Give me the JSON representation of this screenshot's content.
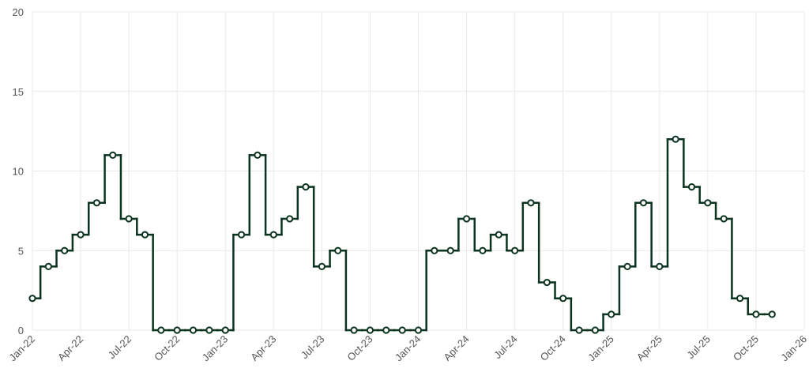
{
  "chart_data": {
    "type": "step",
    "x": [
      "2022-01",
      "2022-02",
      "2022-03",
      "2022-04",
      "2022-05",
      "2022-06",
      "2022-07",
      "2022-08",
      "2022-09",
      "2022-10",
      "2022-11",
      "2022-12",
      "2023-01",
      "2023-02",
      "2023-03",
      "2023-04",
      "2023-05",
      "2023-06",
      "2023-07",
      "2023-08",
      "2023-09",
      "2023-10",
      "2023-11",
      "2023-12",
      "2024-01",
      "2024-02",
      "2024-03",
      "2024-04",
      "2024-05",
      "2024-06",
      "2024-07",
      "2024-08",
      "2024-09",
      "2024-10",
      "2024-11",
      "2024-12",
      "2025-01",
      "2025-02",
      "2025-03",
      "2025-04",
      "2025-05",
      "2025-06",
      "2025-07",
      "2025-08",
      "2025-09",
      "2025-10",
      "2025-11"
    ],
    "values": [
      2,
      4,
      5,
      6,
      8,
      11,
      7,
      6,
      0,
      0,
      0,
      0,
      0,
      6,
      11,
      6,
      7,
      9,
      4,
      5,
      0,
      0,
      0,
      0,
      0,
      5,
      5,
      7,
      5,
      6,
      5,
      8,
      3,
      2,
      0,
      0,
      1,
      4,
      8,
      4,
      12,
      9,
      8,
      7,
      2,
      1,
      1
    ],
    "color": "#0b3320",
    "xlim": [
      "2022-01",
      "2026-01"
    ],
    "xticks": [
      {
        "value": "2022-01",
        "label": "Jan-22"
      },
      {
        "value": "2022-04",
        "label": "Apr-22"
      },
      {
        "value": "2022-07",
        "label": "Jul-22"
      },
      {
        "value": "2022-10",
        "label": "Oct-22"
      },
      {
        "value": "2023-01",
        "label": "Jan-23"
      },
      {
        "value": "2023-04",
        "label": "Apr-23"
      },
      {
        "value": "2023-07",
        "label": "Jul-23"
      },
      {
        "value": "2023-10",
        "label": "Oct-23"
      },
      {
        "value": "2024-01",
        "label": "Jan-24"
      },
      {
        "value": "2024-04",
        "label": "Apr-24"
      },
      {
        "value": "2024-07",
        "label": "Jul-24"
      },
      {
        "value": "2024-10",
        "label": "Oct-24"
      },
      {
        "value": "2025-01",
        "label": "Jan-25"
      },
      {
        "value": "2025-04",
        "label": "Apr-25"
      },
      {
        "value": "2025-07",
        "label": "Jul-25"
      },
      {
        "value": "2025-10",
        "label": "Oct-25"
      },
      {
        "value": "2026-01",
        "label": "Jan-26"
      }
    ],
    "ylim": [
      0,
      20
    ],
    "yticks": [
      0,
      5,
      10,
      15,
      20
    ],
    "grid": true
  }
}
